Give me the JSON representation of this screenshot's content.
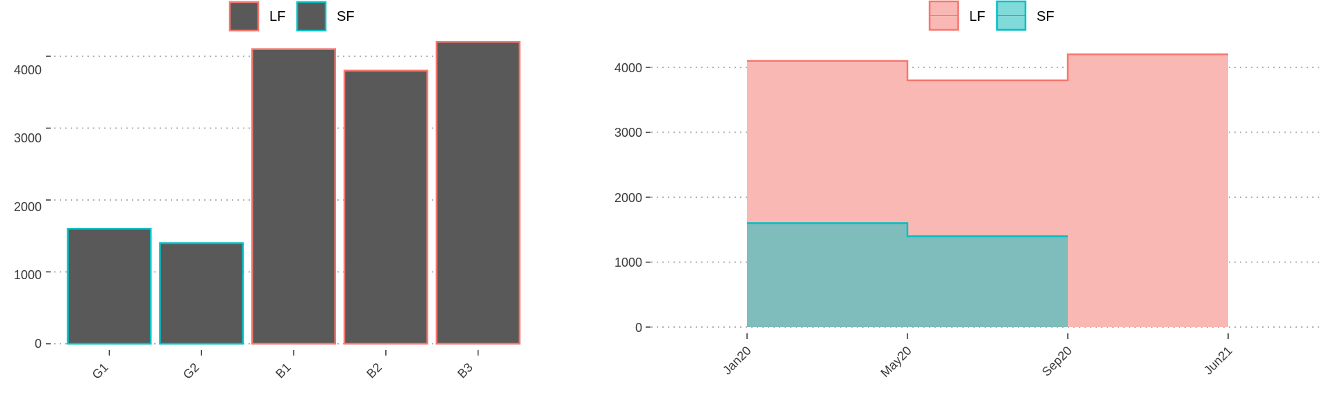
{
  "charts": {
    "bar": {
      "legend": [
        {
          "label": "LF"
        },
        {
          "label": "SF"
        }
      ],
      "y_ticks": [
        "0",
        "1000",
        "2000",
        "3000",
        "4000"
      ],
      "x_ticks": [
        "G1",
        "G2",
        "B1",
        "B2",
        "B3"
      ]
    },
    "area": {
      "legend": [
        {
          "label": "LF"
        },
        {
          "label": "SF"
        }
      ],
      "y_ticks": [
        "0",
        "1000",
        "2000",
        "3000",
        "4000"
      ],
      "x_ticks": [
        "Jan20",
        "May20",
        "Sep20",
        "Jun21"
      ]
    }
  },
  "colors": {
    "LF": "#F8766D",
    "SF": "#00BFC4",
    "bar_fill": "#595959",
    "LF_area": "#FAB8B4",
    "SF_area": "#7FBDBC",
    "grid": "#B0B0B0"
  },
  "chart_data": [
    {
      "type": "bar",
      "categories": [
        "G1",
        "G2",
        "B1",
        "B2",
        "B3"
      ],
      "values": [
        1600,
        1400,
        4100,
        3800,
        4200
      ],
      "groups": [
        "SF",
        "SF",
        "LF",
        "LF",
        "LF"
      ],
      "legend": [
        "LF",
        "SF"
      ],
      "title": "",
      "xlabel": "",
      "ylabel": "",
      "ylim": [
        0,
        4300
      ],
      "y_ticks": [
        0,
        1000,
        2000,
        3000,
        4000
      ],
      "grid": "horizontal dotted",
      "legend_position": "top"
    },
    {
      "type": "area",
      "step": true,
      "x": [
        "Jan20",
        "May20",
        "Sep20",
        "Jun21"
      ],
      "series": [
        {
          "name": "LF",
          "x": [
            "Jan20",
            "May20",
            "Sep20",
            "Jun21"
          ],
          "values": [
            4100,
            3800,
            4200,
            4200
          ]
        },
        {
          "name": "SF",
          "x": [
            "Jan20",
            "May20",
            "Sep20"
          ],
          "values": [
            1600,
            1400,
            1400
          ]
        }
      ],
      "legend": [
        "LF",
        "SF"
      ],
      "title": "",
      "xlabel": "",
      "ylabel": "",
      "ylim": [
        0,
        4300
      ],
      "y_ticks": [
        0,
        1000,
        2000,
        3000,
        4000
      ],
      "x_ticks": [
        "Jan20",
        "May20",
        "Sep20",
        "Jun21"
      ],
      "grid": "horizontal dotted",
      "legend_position": "top"
    }
  ]
}
